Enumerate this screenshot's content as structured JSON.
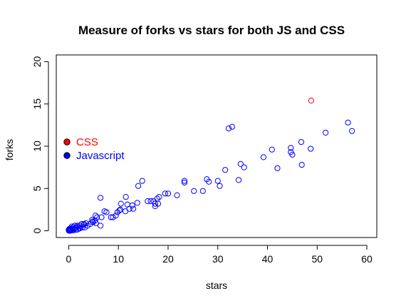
{
  "chart_data": {
    "type": "scatter",
    "title": "Measure of forks vs stars for both JS and CSS",
    "xlabel": "stars",
    "ylabel": "forks",
    "xlim": [
      -2.5,
      62
    ],
    "ylim": [
      -0.8,
      20.8
    ],
    "xticks": [
      0,
      10,
      20,
      30,
      40,
      50,
      60
    ],
    "yticks": [
      0,
      5,
      10,
      15,
      20
    ],
    "grid": false,
    "legend_position": "left",
    "series": [
      {
        "name": "CSS",
        "color": "#ff0000",
        "points": [
          [
            48.8,
            15.4
          ]
        ]
      },
      {
        "name": "Javascript",
        "color": "#0000ff",
        "points": [
          [
            56.2,
            12.8
          ],
          [
            57,
            11.8
          ],
          [
            51.7,
            11.6
          ],
          [
            46.8,
            10.5
          ],
          [
            48.7,
            9.7
          ],
          [
            44.7,
            9.8
          ],
          [
            44.7,
            9.3
          ],
          [
            45,
            9
          ],
          [
            40.9,
            9.6
          ],
          [
            39.2,
            8.7
          ],
          [
            46.9,
            7.8
          ],
          [
            42,
            7.4
          ],
          [
            32.2,
            12.1
          ],
          [
            32.9,
            12.3
          ],
          [
            34.6,
            7.9
          ],
          [
            35.3,
            7.5
          ],
          [
            31.5,
            7.2
          ],
          [
            34.2,
            6
          ],
          [
            27.8,
            6.1
          ],
          [
            28.2,
            5.8
          ],
          [
            30,
            5.9
          ],
          [
            30.4,
            5.3
          ],
          [
            27,
            4.7
          ],
          [
            25.2,
            4.7
          ],
          [
            23.3,
            5.9
          ],
          [
            23.3,
            5.7
          ],
          [
            19.4,
            4.4
          ],
          [
            20,
            4.4
          ],
          [
            21.8,
            4.2
          ],
          [
            18.2,
            4
          ],
          [
            17.8,
            3.8
          ],
          [
            17.1,
            3.5
          ],
          [
            16.5,
            3.5
          ],
          [
            15.9,
            3.5
          ],
          [
            17.4,
            3.2
          ],
          [
            18,
            3.2
          ],
          [
            17.4,
            2.9
          ],
          [
            14.8,
            5.9
          ],
          [
            14,
            5.3
          ],
          [
            13.8,
            3.3
          ],
          [
            12.8,
            3
          ],
          [
            13,
            2.6
          ],
          [
            11.8,
            3.1
          ],
          [
            12.2,
            2.6
          ],
          [
            11.4,
            2.3
          ],
          [
            11.5,
            4
          ],
          [
            10.5,
            3.2
          ],
          [
            10.4,
            2.5
          ],
          [
            10.2,
            2.4
          ],
          [
            9.5,
            1.8
          ],
          [
            9.8,
            2.2
          ],
          [
            8.9,
            1.6
          ],
          [
            6.4,
            3.9
          ],
          [
            7.6,
            2.2
          ],
          [
            7.2,
            2.3
          ],
          [
            8.5,
            1.6
          ],
          [
            6.6,
            1.6
          ],
          [
            6.4,
            0.6
          ],
          [
            5.7,
            1.6
          ],
          [
            5.4,
            1.8
          ],
          [
            4.7,
            1.3
          ],
          [
            5.3,
            1.2
          ],
          [
            4.8,
            1.1
          ],
          [
            5.5,
            0.9
          ],
          [
            4.9,
            1
          ],
          [
            4.3,
            0.8
          ],
          [
            3.5,
            0.9
          ],
          [
            3.8,
            0.6
          ],
          [
            3.1,
            0.8
          ],
          [
            3,
            0.7
          ],
          [
            2.6,
            0.8
          ],
          [
            2.4,
            0.6
          ],
          [
            2.8,
            0.4
          ],
          [
            2.3,
            0.3
          ],
          [
            1.9,
            0.5
          ],
          [
            1.7,
            0.6
          ],
          [
            1.5,
            0.4
          ],
          [
            1.2,
            0.6
          ],
          [
            1.3,
            0.3
          ],
          [
            1.1,
            0.2
          ],
          [
            0.9,
            0.4
          ],
          [
            0.8,
            0.2
          ],
          [
            0.6,
            0.5
          ],
          [
            0.5,
            0.3
          ],
          [
            0.4,
            0.15
          ],
          [
            0.3,
            0.25
          ],
          [
            0.2,
            0.1
          ],
          [
            0.15,
            0.05
          ],
          [
            0.1,
            0.2
          ],
          [
            0.05,
            0
          ],
          [
            0,
            0.1
          ],
          [
            0.3,
            0
          ],
          [
            0.6,
            0.1
          ],
          [
            0.9,
            0.05
          ],
          [
            1.4,
            0.1
          ],
          [
            1.8,
            0.15
          ],
          [
            2.1,
            0.3
          ],
          [
            3.3,
            0.4
          ]
        ]
      }
    ]
  }
}
